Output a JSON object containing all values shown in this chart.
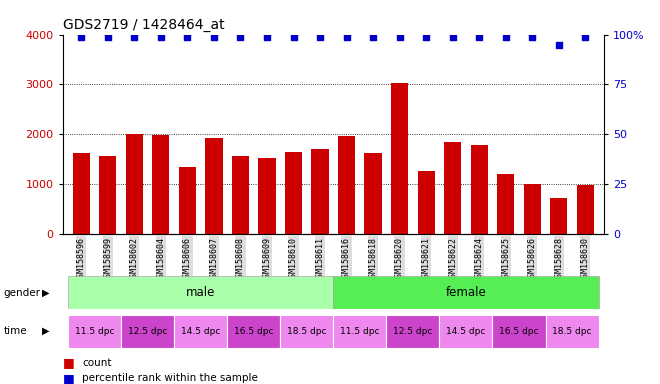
{
  "title": "GDS2719 / 1428464_at",
  "samples": [
    "GSM158596",
    "GSM158599",
    "GSM158602",
    "GSM158604",
    "GSM158606",
    "GSM158607",
    "GSM158608",
    "GSM158609",
    "GSM158610",
    "GSM158611",
    "GSM158616",
    "GSM158618",
    "GSM158620",
    "GSM158621",
    "GSM158622",
    "GSM158624",
    "GSM158625",
    "GSM158626",
    "GSM158628",
    "GSM158630"
  ],
  "counts": [
    1620,
    1560,
    2000,
    1980,
    1340,
    1920,
    1570,
    1530,
    1640,
    1710,
    1960,
    1620,
    3020,
    1260,
    1840,
    1790,
    1200,
    1000,
    730,
    980
  ],
  "percentile_ranks": [
    99,
    99,
    99,
    99,
    99,
    99,
    99,
    99,
    99,
    99,
    99,
    99,
    99,
    99,
    99,
    99,
    99,
    99,
    95,
    99
  ],
  "bar_color": "#cc0000",
  "dot_color": "#0000cc",
  "ylim_left": [
    0,
    4000
  ],
  "ylim_right": [
    0,
    100
  ],
  "yticks_left": [
    0,
    1000,
    2000,
    3000,
    4000
  ],
  "yticks_right": [
    0,
    25,
    50,
    75,
    100
  ],
  "grid_values": [
    1000,
    2000,
    3000
  ],
  "male_color": "#aaffaa",
  "female_color": "#55ee55",
  "time_groups": [
    {
      "label": "11.5 dpc",
      "start": 0,
      "end": 2,
      "color": "#ee88ee"
    },
    {
      "label": "12.5 dpc",
      "start": 2,
      "end": 4,
      "color": "#cc44cc"
    },
    {
      "label": "14.5 dpc",
      "start": 4,
      "end": 6,
      "color": "#ee88ee"
    },
    {
      "label": "16.5 dpc",
      "start": 6,
      "end": 8,
      "color": "#cc44cc"
    },
    {
      "label": "18.5 dpc",
      "start": 8,
      "end": 10,
      "color": "#ee88ee"
    },
    {
      "label": "11.5 dpc",
      "start": 10,
      "end": 12,
      "color": "#ee88ee"
    },
    {
      "label": "12.5 dpc",
      "start": 12,
      "end": 14,
      "color": "#cc44cc"
    },
    {
      "label": "14.5 dpc",
      "start": 14,
      "end": 16,
      "color": "#ee88ee"
    },
    {
      "label": "16.5 dpc",
      "start": 16,
      "end": 18,
      "color": "#cc44cc"
    },
    {
      "label": "18.5 dpc",
      "start": 18,
      "end": 20,
      "color": "#ee88ee"
    }
  ],
  "background_color": "#ffffff",
  "tick_label_color_left": "#cc0000",
  "tick_label_color_right": "#0000cc",
  "title_fontsize": 10,
  "bar_width": 0.65,
  "xticklabel_bg": "#dddddd"
}
